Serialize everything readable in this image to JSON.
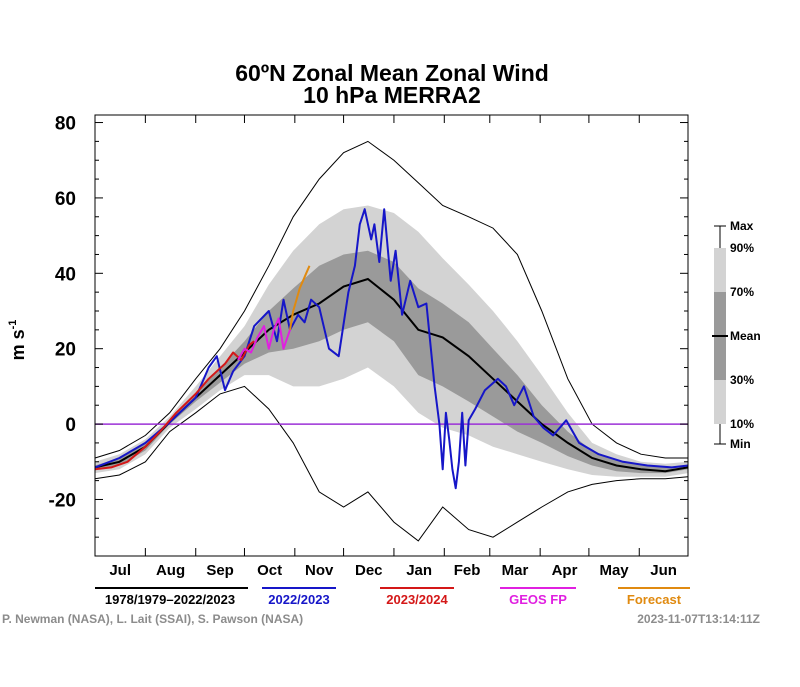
{
  "chart_data": {
    "type": "area",
    "title": "60ºN Zonal Mean Zonal Wind",
    "subtitle": "10 hPa   MERRA2",
    "ylabel": "m s",
    "ylabel_sup": "-1",
    "ylim": [
      -35,
      82
    ],
    "yticks": [
      80,
      60,
      40,
      20,
      0,
      -20
    ],
    "ytick_labels": [
      "80",
      "60",
      "40",
      "20",
      "0",
      "-20"
    ],
    "x_months": [
      "Jul",
      "Aug",
      "Sep",
      "Oct",
      "Nov",
      "Dec",
      "Jan",
      "Feb",
      "Mar",
      "Apr",
      "May",
      "Jun"
    ],
    "x_unit": "day index from 1 Jul (0–365)",
    "zero_line_color": "#9b30d6",
    "percentile_legend": [
      "Max",
      "90%",
      "70%",
      "Mean",
      "30%",
      "10%",
      "Min"
    ],
    "colors": {
      "band_10_90": "#d3d3d3",
      "band_30_70": "#9a9a9a",
      "mean": "#000000",
      "y2022": "#1616c8",
      "y2023": "#d41818",
      "geos": "#e020e0",
      "forecast": "#e08a10"
    },
    "climatology": {
      "x": [
        0,
        15,
        31,
        46,
        62,
        77,
        92,
        107,
        122,
        138,
        153,
        168,
        184,
        199,
        214,
        230,
        245,
        260,
        275,
        291,
        306,
        321,
        336,
        351,
        365
      ],
      "mean": [
        -11.5,
        -10,
        -6,
        0.5,
        7,
        13,
        19,
        25,
        29,
        32,
        36.5,
        38.5,
        33,
        25,
        23,
        18,
        12,
        6,
        0,
        -5,
        -9,
        -11,
        -12,
        -12.5,
        -11.5
      ],
      "p30": [
        -12,
        -11,
        -7,
        0,
        6,
        11,
        16,
        19,
        20,
        22,
        25,
        27,
        22,
        13,
        10,
        6,
        2,
        -2,
        -5,
        -8.5,
        -11,
        -12.5,
        -13,
        -13,
        -12
      ],
      "p70": [
        -11,
        -9,
        -5,
        1,
        8,
        15,
        22,
        30,
        36,
        42,
        45,
        46,
        43,
        36,
        32,
        27,
        20,
        13,
        5,
        -2,
        -7,
        -9.5,
        -11,
        -11.5,
        -11
      ],
      "p10": [
        -13,
        -12,
        -8,
        -1,
        4,
        9,
        13,
        13,
        10,
        10,
        12,
        15,
        10,
        3,
        -1,
        -3,
        -6,
        -8,
        -10,
        -12,
        -13.5,
        -14,
        -14,
        -14,
        -13
      ],
      "p90": [
        -10,
        -8,
        -4,
        2,
        10,
        18,
        26,
        37,
        46,
        53,
        57,
        58,
        56,
        51,
        44,
        37,
        30,
        22,
        13,
        3,
        -5,
        -8,
        -10,
        -10.5,
        -10
      ],
      "min": [
        -14.5,
        -13.5,
        -10,
        -2,
        3,
        8,
        10,
        4,
        -5,
        -18,
        -22,
        -18,
        -26,
        -31,
        -22,
        -28,
        -30,
        -26,
        -22,
        -18,
        -16,
        -15,
        -14.5,
        -14.5,
        -14
      ],
      "max": [
        -9,
        -7,
        -3,
        3,
        12,
        20,
        30,
        42,
        55,
        65,
        72,
        75,
        70,
        64,
        58,
        55,
        52,
        45,
        30,
        12,
        0,
        -5,
        -8,
        -9,
        -9
      ]
    },
    "series": [
      {
        "name": "1978/1979–2022/2023",
        "color": "#000000",
        "role": "mean",
        "x": [],
        "y": []
      },
      {
        "name": "2022/2023",
        "color": "#1616c8",
        "x": [
          0,
          15,
          31,
          46,
          62,
          70,
          75,
          80,
          85,
          92,
          98,
          107,
          112,
          116,
          120,
          125,
          129,
          133,
          138,
          144,
          150,
          156,
          160,
          163,
          166,
          170,
          172,
          175,
          178,
          182,
          185,
          189,
          194,
          199,
          204,
          209,
          212,
          214,
          216,
          218,
          220,
          222,
          224,
          226,
          228,
          230,
          234,
          240,
          248,
          253,
          258,
          264,
          270,
          276,
          282,
          290,
          298,
          310,
          325,
          340,
          355,
          365
        ],
        "y": [
          -11.5,
          -9,
          -5,
          0.5,
          7,
          15,
          18,
          9,
          14,
          18,
          26,
          30,
          22,
          33,
          25,
          29,
          27,
          33,
          31,
          20,
          18,
          35,
          42,
          53,
          57,
          49,
          53,
          43,
          57,
          38,
          46,
          29,
          38,
          31,
          32,
          10,
          0,
          -12,
          3,
          -4,
          -12,
          -17,
          -10,
          3,
          -11,
          1,
          4,
          9,
          12,
          10,
          5,
          10,
          2,
          -1,
          -3,
          1,
          -5,
          -8,
          -10,
          -11,
          -11.5,
          -11
        ]
      },
      {
        "name": "2023/2024",
        "color": "#d41818",
        "x": [
          0,
          10,
          20,
          31,
          40,
          50,
          62,
          70,
          75,
          80,
          85,
          90,
          95,
          98
        ],
        "y": [
          -12,
          -11.5,
          -10,
          -6,
          -2,
          3,
          8,
          12,
          14,
          16,
          19,
          17,
          21,
          22
        ]
      },
      {
        "name": "GEOS FP",
        "color": "#e020e0",
        "x": [
          88,
          92,
          96,
          100,
          104,
          107,
          110,
          113,
          116,
          120
        ],
        "y": [
          17,
          20,
          19,
          23,
          26,
          20,
          25,
          28,
          20,
          25
        ]
      },
      {
        "name": "Forecast",
        "color": "#e08a10",
        "x": [
          120,
          122,
          124,
          126,
          128,
          130,
          132
        ],
        "y": [
          25,
          30,
          33,
          36,
          38,
          40,
          42
        ]
      }
    ]
  },
  "credits": {
    "left": "P. Newman (NASA), L. Lait (SSAI), S. Pawson (NASA)",
    "right": "2023-11-07T13:14:11Z"
  }
}
